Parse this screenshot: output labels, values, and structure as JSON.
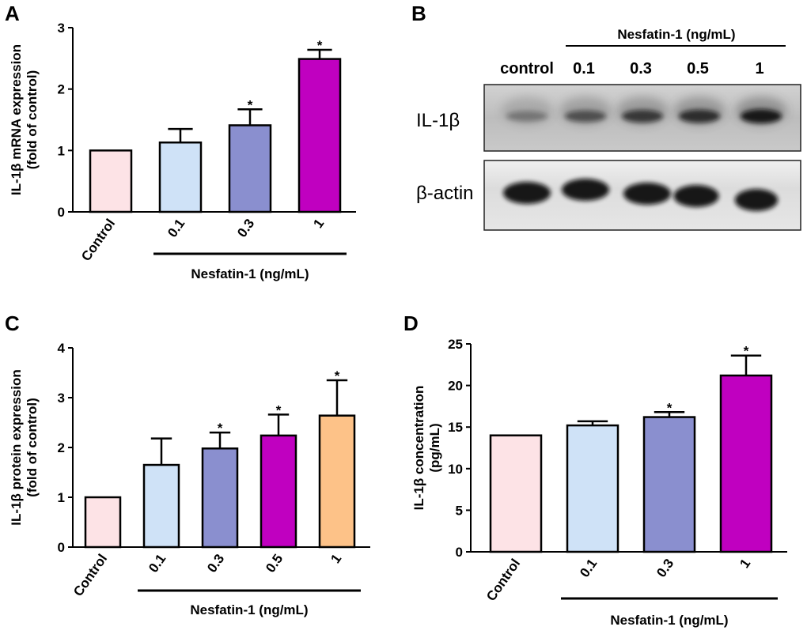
{
  "panels": {
    "a": "A",
    "b": "B",
    "c": "C",
    "d": "D"
  },
  "chart_data": [
    {
      "panel": "A",
      "type": "bar",
      "ylabel": "IL-1β mRNA expression (fold of control)",
      "ylabel_lines": [
        "IL-1β mRNA expression",
        "(fold of control)"
      ],
      "categories": [
        "Control",
        "0.1",
        "0.3",
        "1"
      ],
      "values": [
        1.0,
        1.13,
        1.41,
        2.49
      ],
      "errors": [
        0,
        0.22,
        0.26,
        0.15
      ],
      "significance": [
        "",
        "",
        "*",
        "*"
      ],
      "colors": [
        "#fde3e6",
        "#cfe2f7",
        "#8a8fcf",
        "#c000c0"
      ],
      "ylim": [
        0,
        3
      ],
      "yticks": [
        "0",
        "1",
        "2",
        "3"
      ],
      "group_label": "Nesfatin-1 (ng/mL)"
    },
    {
      "panel": "C",
      "type": "bar",
      "ylabel": "IL-1β protein expression (fold of control)",
      "ylabel_lines": [
        "IL-1β protein expression",
        "(fold of control)"
      ],
      "categories": [
        "Control",
        "0.1",
        "0.3",
        "0.5",
        "1"
      ],
      "values": [
        1.0,
        1.65,
        1.98,
        2.24,
        2.64
      ],
      "errors": [
        0,
        0.53,
        0.32,
        0.42,
        0.71
      ],
      "significance": [
        "",
        "",
        "*",
        "*",
        "*"
      ],
      "colors": [
        "#fde3e6",
        "#cfe2f7",
        "#8a8fcf",
        "#c000c0",
        "#fdc288"
      ],
      "ylim": [
        0,
        4
      ],
      "yticks": [
        "0",
        "1",
        "2",
        "3",
        "4"
      ],
      "group_label": "Nesfatin-1 (ng/mL)"
    },
    {
      "panel": "D",
      "type": "bar",
      "ylabel": "IL-1β concentration (pg/mL)",
      "ylabel_lines": [
        "IL-1β concentration",
        "(pg/mL)"
      ],
      "categories": [
        "Control",
        "0.1",
        "0.3",
        "1"
      ],
      "values": [
        14.0,
        15.2,
        16.2,
        21.2
      ],
      "errors": [
        0,
        0.5,
        0.6,
        2.4
      ],
      "significance": [
        "",
        "",
        "*",
        "*"
      ],
      "colors": [
        "#fde3e6",
        "#cfe2f7",
        "#8a8fcf",
        "#c000c0"
      ],
      "ylim": [
        0,
        25
      ],
      "yticks": [
        "0",
        "5",
        "10",
        "15",
        "20",
        "25"
      ],
      "group_label": "Nesfatin-1 (ng/mL)"
    }
  ],
  "blot": {
    "group_label": "Nesfatin-1 (ng/mL)",
    "lanes": [
      "control",
      "0.1",
      "0.3",
      "0.5",
      "1"
    ],
    "rows": [
      {
        "label": "IL-1β",
        "band_intensity": [
          0.15,
          0.45,
          0.65,
          0.75,
          0.95
        ]
      },
      {
        "label": "β-actin",
        "band_intensity": [
          1.0,
          1.0,
          1.0,
          0.95,
          0.9
        ]
      }
    ]
  }
}
